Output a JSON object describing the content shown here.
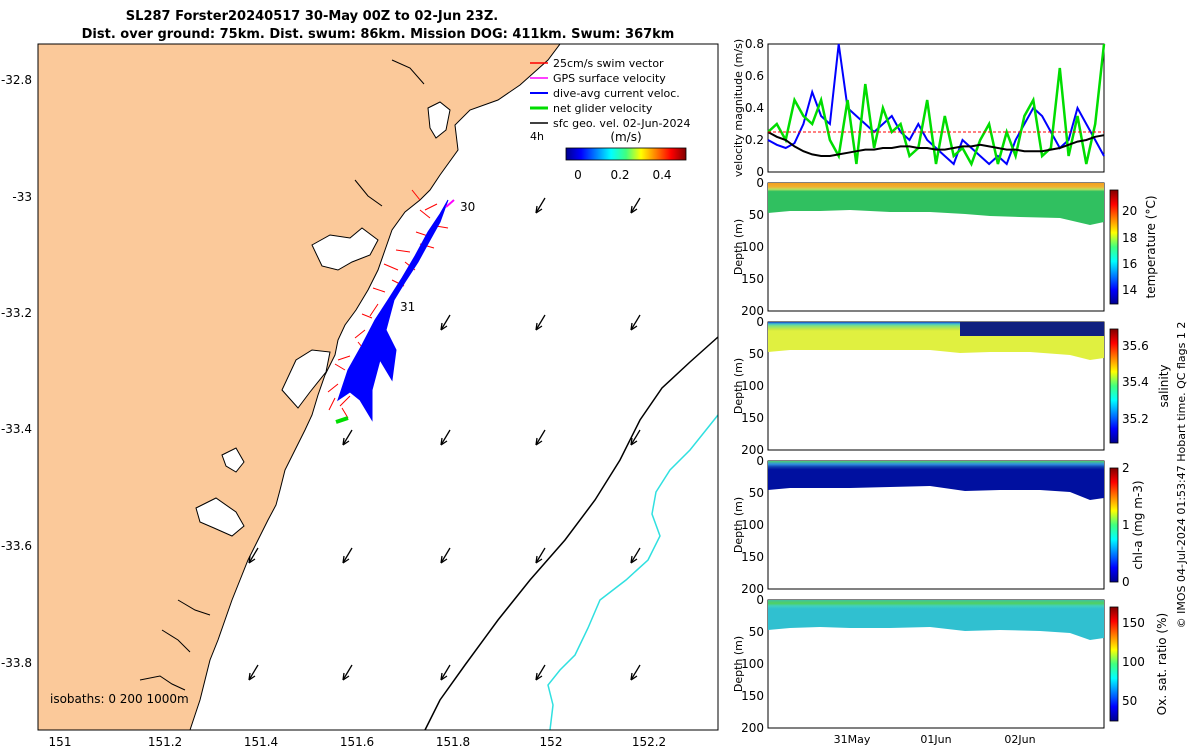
{
  "title": {
    "line1": "SL287 Forster20240517 30-May 00Z to 02-Jun 23Z.",
    "line2": "Dist. over ground: 75km. Dist. swum: 86km. Mission DOG: 411km. Swum: 367km"
  },
  "legend": {
    "items": [
      {
        "label": "25cm/s swim vector",
        "color": "#ff0000"
      },
      {
        "label": "GPS surface velocity",
        "color": "#ff00ff"
      },
      {
        "label": "dive-avg current veloc.",
        "color": "#0000ff"
      },
      {
        "label": "net glider velocity",
        "color": "#00dd00"
      },
      {
        "label": "sfc geo. vel. 02-Jun-2024",
        "color": "#000000"
      }
    ],
    "interval_label": "4h",
    "speed_colorbar": {
      "label": "(m/s)",
      "ticks": [
        "0",
        "0.2",
        "0.4"
      ]
    }
  },
  "map": {
    "x_ticks": [
      "151",
      "151.2",
      "151.4",
      "151.6",
      "151.8",
      "152",
      "152.2"
    ],
    "y_ticks": [
      "-32.8",
      "-33",
      "-33.2",
      "-33.4",
      "-33.6",
      "-33.8"
    ],
    "day_labels": [
      "30",
      "31"
    ],
    "isobath_label": "isobaths: 0   200  1000m",
    "land_color": "#fbc99a"
  },
  "chart_data": [
    {
      "type": "line",
      "ylabel": "velocity magnitude (m/s)",
      "ylim": [
        0,
        0.8
      ],
      "y_ticks": [
        "0",
        "0.2",
        "0.4",
        "0.6",
        "0.8"
      ],
      "grid": false,
      "series": [
        {
          "color": "#0000ff",
          "values": [
            0.2,
            0.17,
            0.15,
            0.18,
            0.3,
            0.5,
            0.35,
            0.3,
            0.8,
            0.4,
            0.35,
            0.3,
            0.25,
            0.3,
            0.35,
            0.25,
            0.2,
            0.3,
            0.2,
            0.15,
            0.1,
            0.05,
            0.2,
            0.15,
            0.1,
            0.05,
            0.1,
            0.05,
            0.2,
            0.3,
            0.4,
            0.35,
            0.25,
            0.15,
            0.2,
            0.4,
            0.3,
            0.2,
            0.1
          ]
        },
        {
          "color": "#00dd00",
          "values": [
            0.25,
            0.3,
            0.2,
            0.45,
            0.35,
            0.3,
            0.45,
            0.2,
            0.1,
            0.45,
            0.05,
            0.55,
            0.15,
            0.4,
            0.25,
            0.3,
            0.1,
            0.15,
            0.45,
            0.05,
            0.35,
            0.1,
            0.15,
            0.05,
            0.2,
            0.3,
            0.05,
            0.25,
            0.1,
            0.35,
            0.45,
            0.1,
            0.15,
            0.65,
            0.1,
            0.35,
            0.05,
            0.3,
            0.8
          ]
        },
        {
          "color": "#000000",
          "values": [
            0.25,
            0.22,
            0.2,
            0.16,
            0.13,
            0.11,
            0.1,
            0.1,
            0.11,
            0.12,
            0.13,
            0.14,
            0.14,
            0.15,
            0.15,
            0.16,
            0.16,
            0.15,
            0.15,
            0.14,
            0.14,
            0.15,
            0.16,
            0.16,
            0.17,
            0.16,
            0.15,
            0.14,
            0.14,
            0.13,
            0.13,
            0.13,
            0.14,
            0.15,
            0.17,
            0.19,
            0.2,
            0.22,
            0.23
          ]
        },
        {
          "color": "#ff0000",
          "values": [
            0.25,
            0.25,
            0.25,
            0.25,
            0.25,
            0.25,
            0.25,
            0.25,
            0.25,
            0.25,
            0.25,
            0.25,
            0.25,
            0.25,
            0.25,
            0.25,
            0.25,
            0.25,
            0.25,
            0.25,
            0.25,
            0.25,
            0.25,
            0.25,
            0.25,
            0.25,
            0.25,
            0.25,
            0.25,
            0.25,
            0.25,
            0.25,
            0.25,
            0.25,
            0.25,
            0.25,
            0.25,
            0.25,
            0.25
          ]
        }
      ]
    },
    {
      "type": "heatmap",
      "ylabel": "Depth (m)",
      "ylim": [
        200,
        0
      ],
      "y_ticks": [
        "0",
        "50",
        "100",
        "150",
        "200"
      ],
      "colorbar_label": "temperature (°C)",
      "colorbar_ticks": [
        "14",
        "16",
        "18",
        "20"
      ],
      "colorbar_range": [
        13,
        21.5
      ]
    },
    {
      "type": "heatmap",
      "ylabel": "Depth (m)",
      "ylim": [
        200,
        0
      ],
      "y_ticks": [
        "0",
        "50",
        "100",
        "150",
        "200"
      ],
      "colorbar_label": "salinity",
      "colorbar_ticks": [
        "35.2",
        "35.4",
        "35.6"
      ],
      "colorbar_range": [
        35.1,
        35.7
      ]
    },
    {
      "type": "heatmap",
      "ylabel": "Depth (m)",
      "ylim": [
        200,
        0
      ],
      "y_ticks": [
        "0",
        "50",
        "100",
        "150",
        "200"
      ],
      "colorbar_label": "chl-a (mg m-3)",
      "colorbar_ticks": [
        "0",
        "1",
        "2"
      ],
      "colorbar_range": [
        0,
        2
      ]
    },
    {
      "type": "heatmap",
      "ylabel": "Depth (m)",
      "ylim": [
        200,
        0
      ],
      "y_ticks": [
        "0",
        "50",
        "100",
        "150",
        "200"
      ],
      "x_ticks": [
        "31May",
        "01Jun",
        "02Jun"
      ],
      "colorbar_label": "Ox. sat. ratio (%)",
      "colorbar_ticks": [
        "50",
        "100",
        "150"
      ],
      "colorbar_range": [
        25,
        175
      ]
    }
  ],
  "footer": "© IMOS 04-Jul-2024 01:53:47 Hobart time. QC flags 1  2"
}
